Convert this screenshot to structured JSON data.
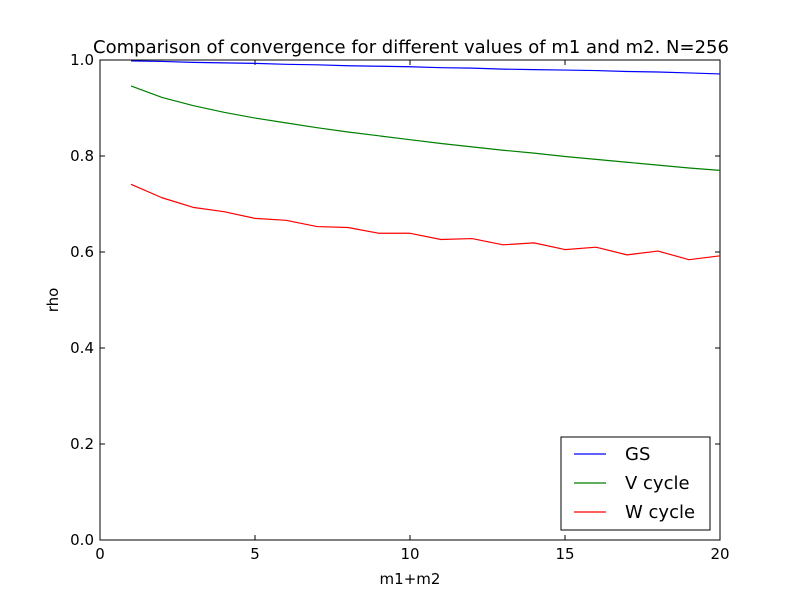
{
  "chart_data": {
    "type": "line",
    "title": "Comparison of convergence for different values of m1 and m2. N=256",
    "xlabel": "m1+m2",
    "ylabel": "rho",
    "xlim": [
      0,
      20
    ],
    "ylim": [
      0.0,
      1.0
    ],
    "xticks": [
      0,
      5,
      10,
      15,
      20
    ],
    "xtick_labels": [
      "0",
      "5",
      "10",
      "15",
      "20"
    ],
    "yticks": [
      0.0,
      0.2,
      0.4,
      0.6,
      0.8,
      1.0
    ],
    "ytick_labels": [
      "0.0",
      "0.2",
      "0.4",
      "0.6",
      "0.8",
      "1.0"
    ],
    "grid": false,
    "legend_position": "bottom-right",
    "x": [
      1,
      2,
      3,
      4,
      5,
      6,
      7,
      8,
      9,
      10,
      11,
      12,
      13,
      14,
      15,
      16,
      17,
      18,
      19,
      20
    ],
    "series": [
      {
        "name": "GS",
        "color": "#0000ff",
        "values": [
          0.998,
          0.997,
          0.995,
          0.994,
          0.993,
          0.991,
          0.99,
          0.988,
          0.987,
          0.986,
          0.984,
          0.983,
          0.981,
          0.98,
          0.979,
          0.978,
          0.976,
          0.975,
          0.973,
          0.971
        ]
      },
      {
        "name": "V cycle",
        "color": "#008000",
        "values": [
          0.946,
          0.922,
          0.905,
          0.891,
          0.879,
          0.869,
          0.859,
          0.85,
          0.842,
          0.834,
          0.826,
          0.819,
          0.812,
          0.806,
          0.799,
          0.793,
          0.787,
          0.781,
          0.775,
          0.77
        ]
      },
      {
        "name": "W cycle",
        "color": "#ff0000",
        "values": [
          0.741,
          0.713,
          0.693,
          0.684,
          0.67,
          0.666,
          0.653,
          0.651,
          0.639,
          0.639,
          0.626,
          0.628,
          0.615,
          0.619,
          0.605,
          0.61,
          0.594,
          0.602,
          0.584,
          0.592
        ]
      }
    ]
  }
}
